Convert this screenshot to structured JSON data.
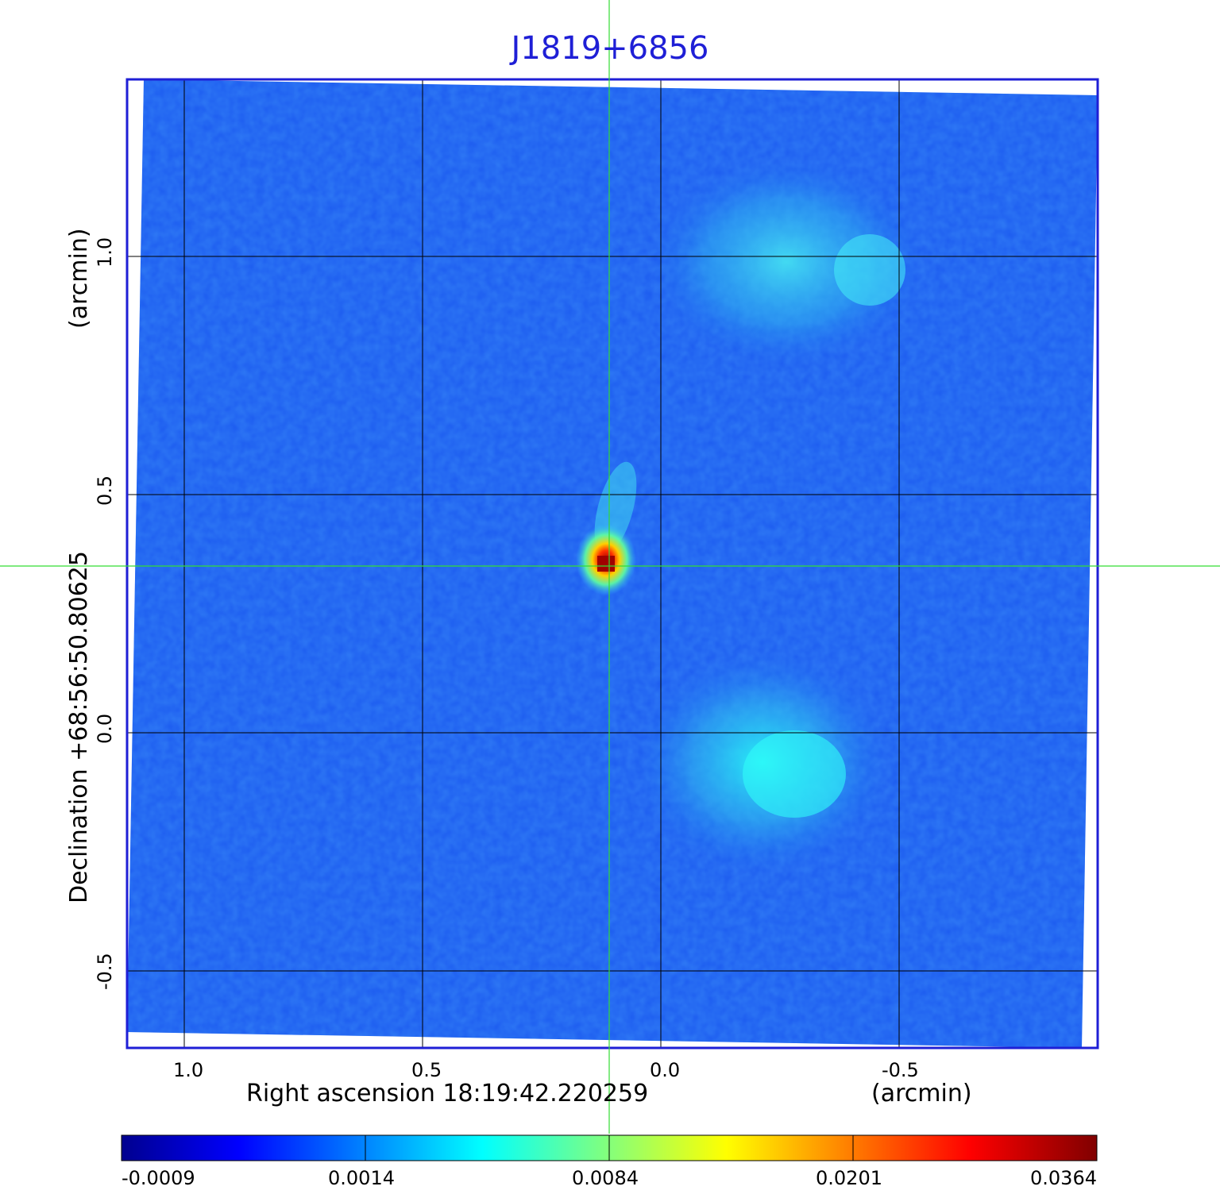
{
  "title": "J1819+6856",
  "x_axis": {
    "label": "Right ascension  18:19:42.220259",
    "unit": "(arcmin)",
    "ticks": [
      "1.0",
      "0.5",
      "0.0",
      "-0.5"
    ]
  },
  "y_axis": {
    "label": "Declination  +68:56:50.80625",
    "unit": "(arcmin)",
    "ticks": [
      "1.0",
      "0.5",
      "0.0",
      "-0.5"
    ]
  },
  "colorbar": {
    "ticks": [
      "-0.0009",
      "0.0014",
      "0.0084",
      "0.0201",
      "0.0364"
    ],
    "colors": [
      "#00008f",
      "#0000ff",
      "#00ffff",
      "#ffff00",
      "#ff0000",
      "#800000"
    ]
  },
  "colors": {
    "frame": "#1f1fd6",
    "grid": "#000000",
    "crosshair": "#33dd33",
    "background_emission": "#1e5ef0"
  }
}
